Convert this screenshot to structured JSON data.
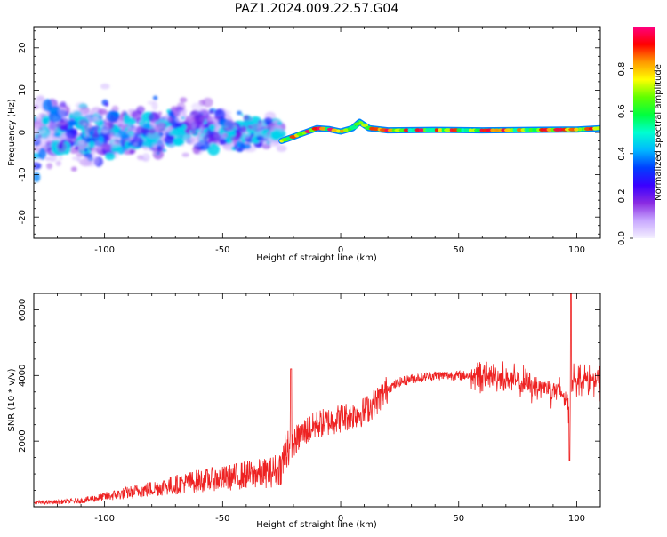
{
  "figure": {
    "title": "PAZ1.2024.009.22.57.G04"
  },
  "chart_data": [
    {
      "type": "heatmap",
      "title": "PAZ1.2024.009.22.57.G04",
      "xlabel": "Height of straight line (km)",
      "ylabel": "Frequency (Hz)",
      "xlim": [
        -130,
        110
      ],
      "ylim": [
        -25,
        25
      ],
      "xticks": [
        -100,
        -50,
        0,
        50,
        100
      ],
      "yticks": [
        -20,
        -10,
        0,
        10,
        20
      ],
      "colorbar": {
        "label": "Normalized spectral amplitude",
        "range": [
          0,
          1
        ],
        "ticks": [
          0.0,
          0.2,
          0.4,
          0.6,
          0.8
        ],
        "colors": [
          "#f4f0ff",
          "#c8a8ff",
          "#8a2be2",
          "#3a00ff",
          "#0040ff",
          "#00b8ff",
          "#00ffd0",
          "#00ff40",
          "#60ff00",
          "#ffff00",
          "#ff9900",
          "#ff0000",
          "#ff0080"
        ]
      },
      "ridge_path": [
        {
          "x": -25,
          "y": -2.0
        },
        {
          "x": -20,
          "y": -1.0
        },
        {
          "x": -15,
          "y": 0.0
        },
        {
          "x": -10,
          "y": 1.0
        },
        {
          "x": -5,
          "y": 0.8
        },
        {
          "x": 0,
          "y": 0.2
        },
        {
          "x": 5,
          "y": 1.0
        },
        {
          "x": 8,
          "y": 2.5
        },
        {
          "x": 12,
          "y": 1.0
        },
        {
          "x": 20,
          "y": 0.5
        },
        {
          "x": 40,
          "y": 0.6
        },
        {
          "x": 60,
          "y": 0.5
        },
        {
          "x": 80,
          "y": 0.6
        },
        {
          "x": 100,
          "y": 0.7
        },
        {
          "x": 110,
          "y": 1.0
        }
      ],
      "scatter_regions": [
        {
          "x_from": -130,
          "x_to": -25,
          "y_center": 0,
          "y_spread": 12,
          "amplitude": 0.15
        }
      ]
    },
    {
      "type": "line",
      "xlabel": "Height of straight line (km)",
      "ylabel": "SNR (10 * v/v)",
      "xlim": [
        -130,
        110
      ],
      "ylim": [
        0,
        6500
      ],
      "xticks": [
        -100,
        -50,
        0,
        50,
        100
      ],
      "yticks": [
        2000,
        4000,
        6000
      ],
      "color": "#ee2222",
      "x": [
        -130,
        -120,
        -110,
        -100,
        -90,
        -80,
        -70,
        -60,
        -50,
        -40,
        -30,
        -25,
        -23,
        -21,
        -18,
        -15,
        -10,
        -5,
        0,
        5,
        10,
        15,
        20,
        25,
        30,
        40,
        50,
        60,
        70,
        80,
        90,
        95,
        97,
        98,
        100,
        105,
        110
      ],
      "y": [
        100,
        120,
        150,
        250,
        350,
        450,
        550,
        650,
        700,
        800,
        850,
        1000,
        1500,
        1800,
        2100,
        2300,
        2500,
        2600,
        2700,
        2800,
        2900,
        3200,
        3600,
        3800,
        3900,
        4000,
        4000,
        4000,
        3900,
        3700,
        3600,
        3400,
        2800,
        3800,
        3900,
        3850,
        3800
      ]
    }
  ]
}
